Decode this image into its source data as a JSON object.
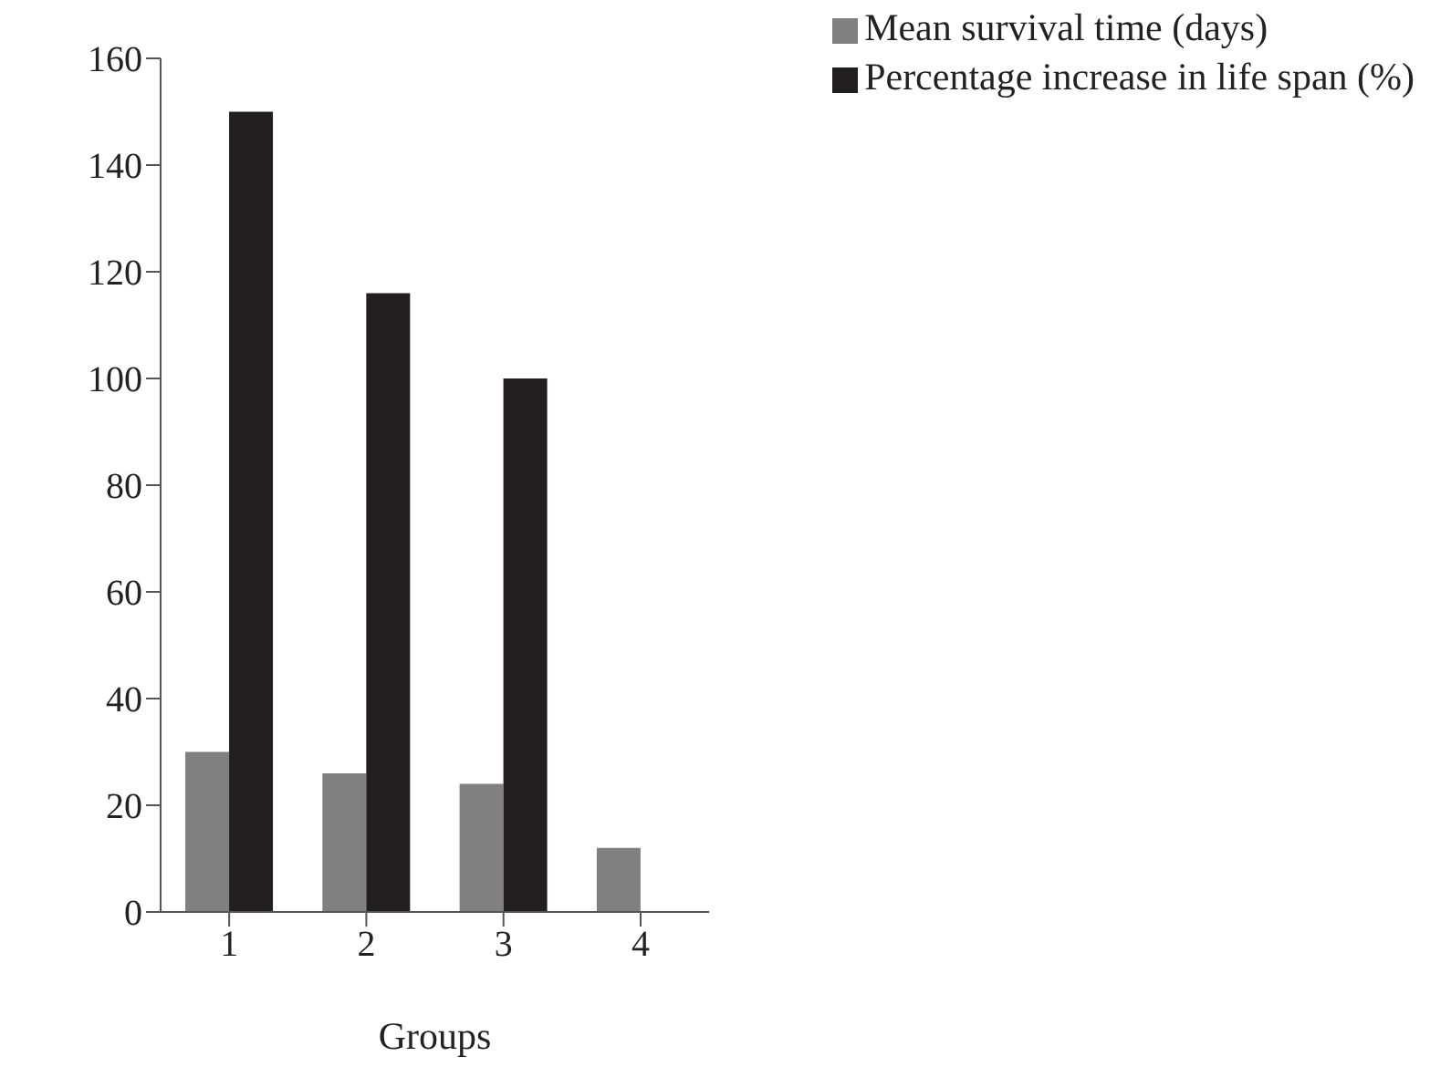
{
  "chart_data": {
    "type": "bar",
    "xlabel": "Groups",
    "categories": [
      "1",
      "2",
      "3",
      "4"
    ],
    "series": [
      {
        "name": "Mean survival time (days)",
        "color": "#808080",
        "values": [
          30,
          26,
          24,
          12
        ]
      },
      {
        "name": "Percentage increase in life span (%)",
        "color": "#231f20",
        "values": [
          150,
          116,
          100,
          null
        ]
      }
    ],
    "ylim": [
      0,
      160
    ],
    "yticks": [
      0,
      20,
      40,
      60,
      80,
      100,
      120,
      140,
      160
    ],
    "grid": false,
    "legend": "top right"
  }
}
